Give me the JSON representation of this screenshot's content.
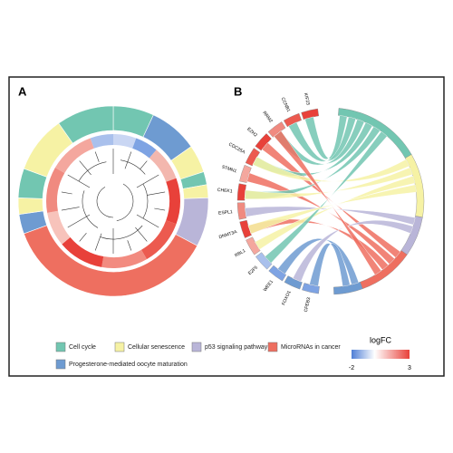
{
  "panels": [
    {
      "label": "A"
    },
    {
      "label": "B",
      "genes": [
        "KIF23",
        "CCNB1",
        "RRM2",
        "EZH2",
        "CDC25A",
        "STMN1",
        "CHEK1",
        "ESPL1",
        "DNMT3A",
        "RBL1",
        "E2F5",
        "WEE1",
        "FOXO1",
        "CPEB3"
      ]
    }
  ],
  "legend": {
    "items": [
      "Cell cycle",
      "Cellular senescence",
      "p53 signaling pathway",
      "MicroRNAs in cancer",
      "Progesterone-mediated oocyte maturation"
    ]
  },
  "colorbar": {
    "title": "logFC",
    "min": -2,
    "max": 3
  }
}
